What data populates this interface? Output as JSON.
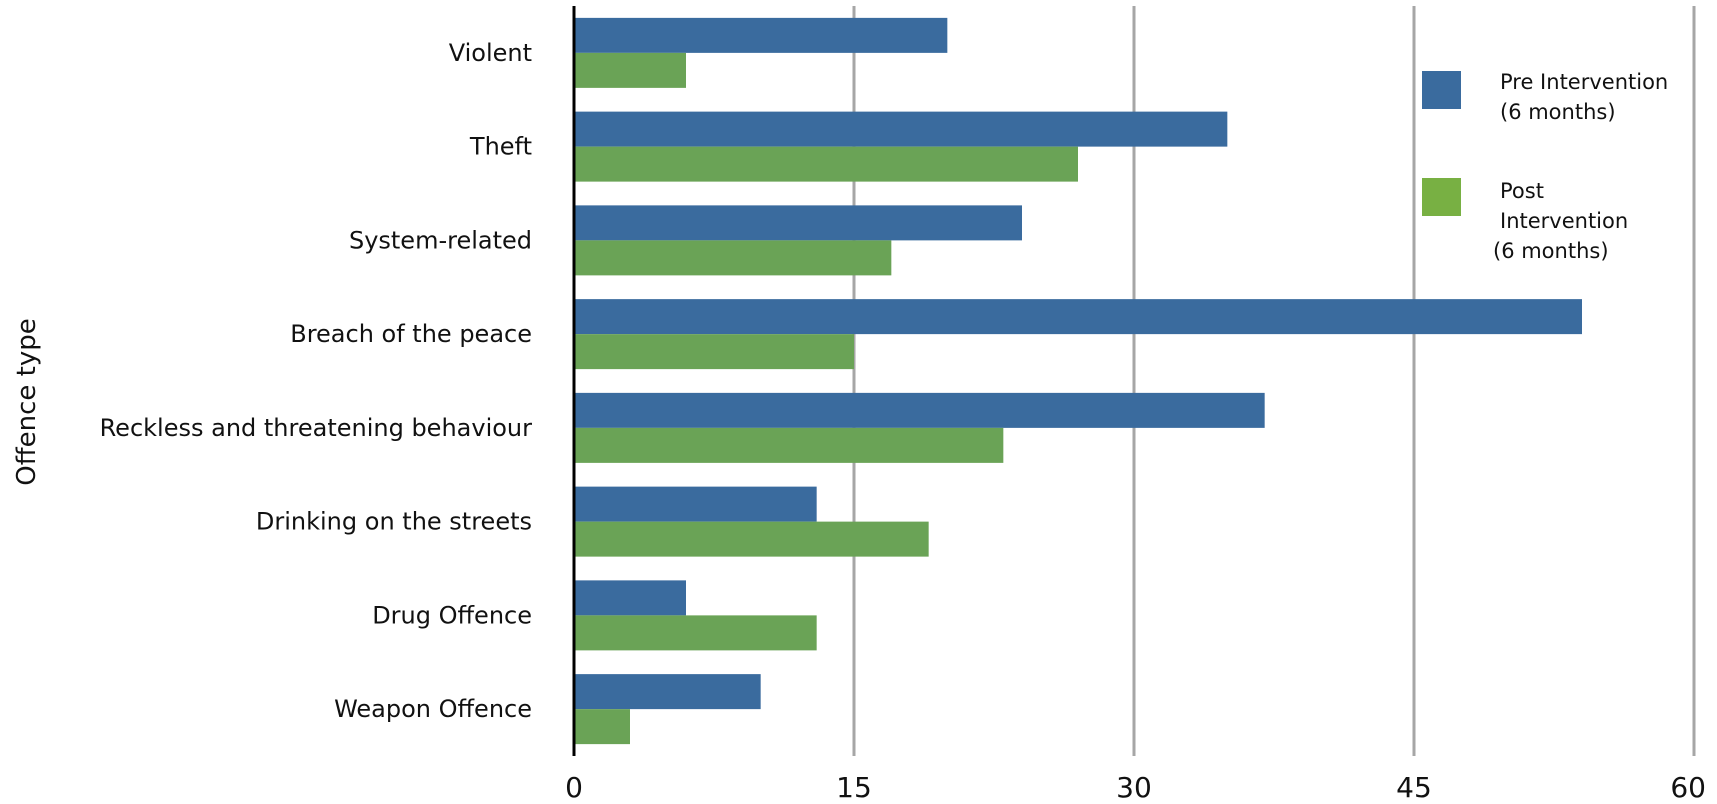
{
  "chart_data": {
    "type": "bar",
    "orientation": "horizontal",
    "title": "",
    "xlabel": "",
    "ylabel": "Offence type",
    "categories": [
      "Violent",
      "Theft",
      "System-related",
      "Breach of the peace",
      "Reckless and threatening behaviour",
      "Drinking on the streets",
      "Drug Offence",
      "Weapon Offence"
    ],
    "series": [
      {
        "name": "Pre Intervention (6 months)",
        "legend_lines": [
          "Pre Intervention",
          "(6 months)"
        ],
        "color": "#3a6b9e",
        "values": [
          20,
          35,
          24,
          54,
          37,
          13,
          6,
          10
        ]
      },
      {
        "name": "Post Intervention (6 months)",
        "legend_lines": [
          "Post",
          "Intervention",
          "(6 months)"
        ],
        "color": "#6aa356",
        "values": [
          6,
          27,
          17,
          15,
          23,
          19,
          13,
          3
        ]
      }
    ],
    "xlim": [
      0,
      60
    ],
    "xticks": [
      "0",
      "15",
      "30",
      "45",
      "60"
    ],
    "xtick_values": [
      0,
      15,
      30,
      45,
      60
    ],
    "grid": true,
    "grid_color": "#a6a6a6",
    "legend_position": "top-right",
    "legend_colors": [
      "#3a6b9e",
      "#78b043"
    ]
  }
}
